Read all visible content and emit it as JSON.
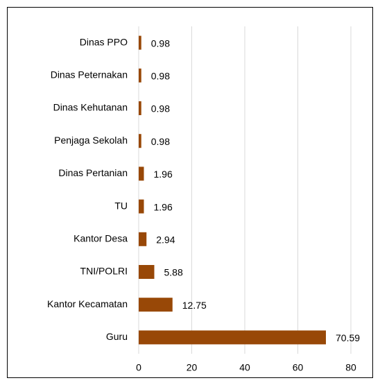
{
  "chart_data": {
    "type": "hbar",
    "categories": [
      "Dinas PPO",
      "Dinas Peternakan",
      "Dinas Kehutanan",
      "Penjaga Sekolah",
      "Dinas Pertanian",
      "TU",
      "Kantor Desa",
      "TNI/POLRI",
      "Kantor Kecamatan",
      "Guru"
    ],
    "values": [
      0.98,
      0.98,
      0.98,
      0.98,
      1.96,
      1.96,
      2.94,
      5.88,
      12.75,
      70.59
    ],
    "color": "#984807",
    "xlim": [
      0,
      80
    ],
    "xticks": [
      0,
      20,
      40,
      60,
      80
    ],
    "grid": true
  }
}
